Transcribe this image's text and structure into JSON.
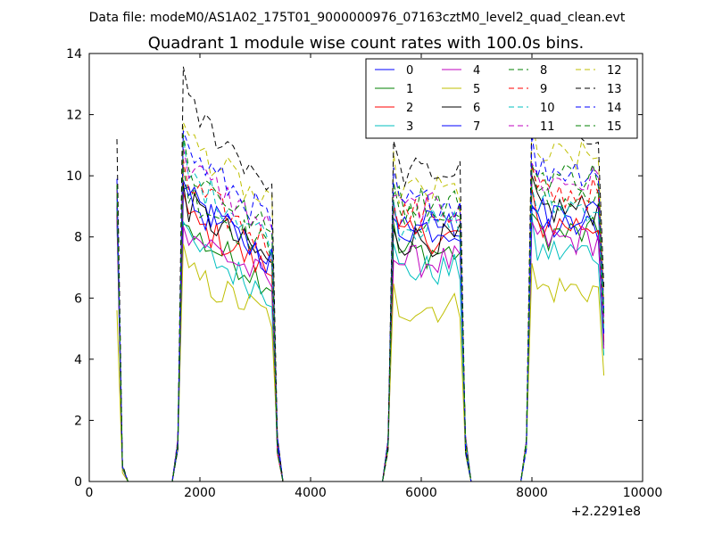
{
  "chart_data": {
    "type": "line",
    "suptitle": "Data file: modeM0/AS1A02_175T01_9000000976_07163cztM0_level2_quad_clean.evt",
    "title": "Quadrant 1 module wise count rates with 100.0s bins.",
    "xlabel": "",
    "ylabel": "",
    "x_offset_label": "+2.2291e8",
    "xlim": [
      0,
      10000
    ],
    "ylim": [
      0,
      14
    ],
    "xticks": [
      0,
      2000,
      4000,
      6000,
      8000,
      10000
    ],
    "xtick_labels": [
      "0",
      "2000",
      "4000",
      "6000",
      "8000",
      "10000"
    ],
    "yticks": [
      0,
      2,
      4,
      6,
      8,
      10,
      12,
      14
    ],
    "ytick_labels": [
      "0",
      "2",
      "4",
      "6",
      "8",
      "10",
      "12",
      "14"
    ],
    "legend_position": "top-right",
    "legend_columns": 4,
    "grid": false,
    "segments": [
      {
        "x_start": 500,
        "count": 2
      },
      {
        "x_start": 1600,
        "count": 17
      },
      {
        "x_start": 5400,
        "count": 13
      },
      {
        "x_start": 7900,
        "count": 13
      }
    ],
    "series": [
      {
        "name": "0",
        "color": "#0000ff",
        "dash": "solid",
        "seg_levels": [
          9.0,
          8.6,
          8.4,
          8.3
        ]
      },
      {
        "name": "1",
        "color": "#008000",
        "dash": "solid",
        "seg_levels": [
          9.4,
          7.6,
          7.5,
          8.1
        ]
      },
      {
        "name": "2",
        "color": "#ff0000",
        "dash": "solid",
        "seg_levels": [
          8.8,
          8.0,
          8.0,
          8.4
        ]
      },
      {
        "name": "3",
        "color": "#00bfbf",
        "dash": "solid",
        "seg_levels": [
          8.5,
          7.2,
          6.9,
          7.5
        ]
      },
      {
        "name": "4",
        "color": "#bf00bf",
        "dash": "solid",
        "seg_levels": [
          8.6,
          7.6,
          7.2,
          7.9
        ]
      },
      {
        "name": "5",
        "color": "#bfbf00",
        "dash": "solid",
        "seg_levels": [
          5.6,
          6.3,
          5.7,
          6.3
        ]
      },
      {
        "name": "6",
        "color": "#000000",
        "dash": "solid",
        "seg_levels": [
          9.1,
          8.4,
          7.9,
          8.9
        ]
      },
      {
        "name": "7",
        "color": "#0000ff",
        "dash": "solid",
        "seg_levels": [
          9.3,
          8.5,
          8.3,
          8.8
        ]
      },
      {
        "name": "8",
        "color": "#008000",
        "dash": "dashed",
        "seg_levels": [
          9.5,
          8.8,
          8.6,
          9.2
        ]
      },
      {
        "name": "9",
        "color": "#ff0000",
        "dash": "dashed",
        "seg_levels": [
          9.6,
          9.0,
          8.8,
          9.4
        ]
      },
      {
        "name": "10",
        "color": "#00bfbf",
        "dash": "dashed",
        "seg_levels": [
          9.2,
          9.3,
          8.4,
          9.0
        ]
      },
      {
        "name": "11",
        "color": "#bf00bf",
        "dash": "dashed",
        "seg_levels": [
          9.4,
          9.6,
          8.9,
          9.8
        ]
      },
      {
        "name": "12",
        "color": "#bfbf00",
        "dash": "dashed",
        "seg_levels": [
          9.8,
          10.4,
          9.5,
          10.6
        ]
      },
      {
        "name": "13",
        "color": "#000000",
        "dash": "dashed",
        "seg_levels": [
          11.2,
          11.4,
          10.1,
          11.5
        ]
      },
      {
        "name": "14",
        "color": "#0000ff",
        "dash": "dashed",
        "seg_levels": [
          9.9,
          10.0,
          9.1,
          10.2
        ]
      },
      {
        "name": "15",
        "color": "#008000",
        "dash": "dashed",
        "seg_levels": [
          9.7,
          9.5,
          9.2,
          10.0
        ]
      }
    ]
  }
}
